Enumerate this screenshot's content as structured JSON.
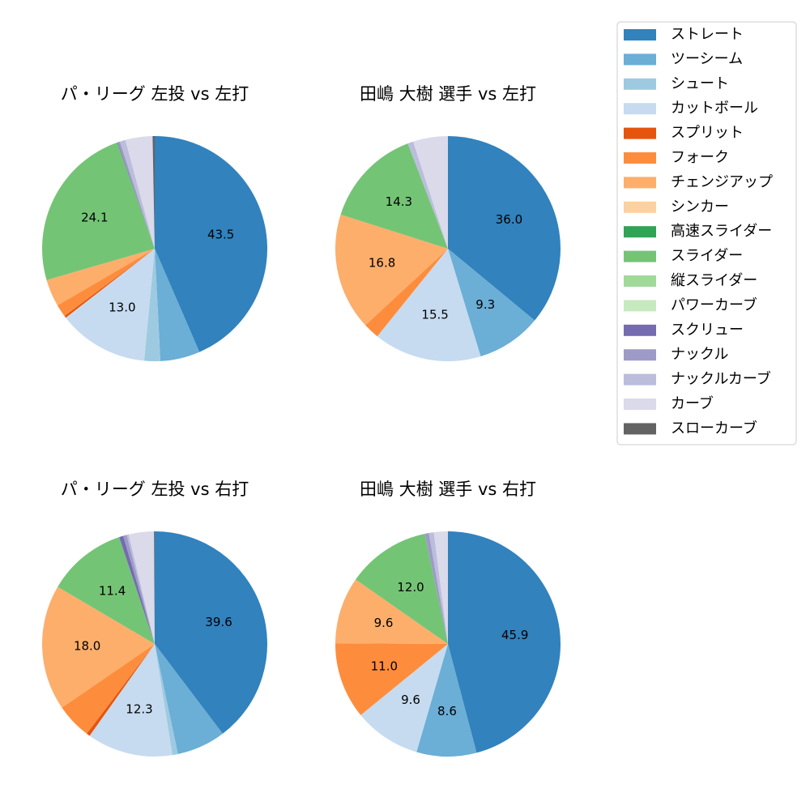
{
  "legend": {
    "labels": [
      "ストレート",
      "ツーシーム",
      "シュート",
      "カットボール",
      "スプリット",
      "フォーク",
      "チェンジアップ",
      "シンカー",
      "高速スライダー",
      "スライダー",
      "縦スライダー",
      "パワーカーブ",
      "スクリュー",
      "ナックル",
      "ナックルカーブ",
      "カーブ",
      "スローカーブ"
    ],
    "colors": [
      "#3182bd",
      "#6baed6",
      "#9ecae1",
      "#c6dbef",
      "#e6550d",
      "#fd8d3c",
      "#fdae6b",
      "#fdd0a2",
      "#31a354",
      "#74c476",
      "#a1d99b",
      "#c7e9c0",
      "#756bb1",
      "#9e9ac8",
      "#bcbddc",
      "#dadaeb",
      "#636363"
    ]
  },
  "chart_data": [
    {
      "type": "pie",
      "title": "パ・リーグ 左投 vs 左打",
      "values": [
        43.5,
        5.7,
        2.3,
        13.0,
        0.3,
        1.8,
        3.9,
        0,
        0,
        24.1,
        0,
        0,
        0.1,
        0.3,
        0.8,
        3.9,
        0.3
      ],
      "value_labels": [
        "43.5",
        null,
        null,
        "13.0",
        null,
        null,
        null,
        null,
        null,
        "24.1",
        null,
        null,
        null,
        null,
        null,
        null,
        null
      ]
    },
    {
      "type": "pie",
      "title": "田嶋 大樹 選手 vs 左打",
      "values": [
        36.0,
        9.3,
        0,
        15.5,
        0,
        2.3,
        16.8,
        0,
        0,
        14.3,
        0,
        0,
        0,
        0,
        0.8,
        5.0,
        0
      ],
      "value_labels": [
        "36.0",
        "9.3",
        null,
        "15.5",
        null,
        null,
        "16.8",
        null,
        null,
        "14.3",
        null,
        null,
        null,
        null,
        null,
        null,
        null
      ]
    },
    {
      "type": "pie",
      "title": "パ・リーグ 左投 vs 右打",
      "values": [
        39.6,
        7.0,
        0.8,
        12.3,
        0.5,
        5.1,
        18.0,
        0,
        0,
        11.4,
        0,
        0,
        0.6,
        0.5,
        0.3,
        3.6,
        0.1
      ],
      "value_labels": [
        "39.6",
        null,
        null,
        "12.3",
        null,
        null,
        "18.0",
        null,
        null,
        "11.4",
        null,
        null,
        null,
        null,
        null,
        null,
        null
      ]
    },
    {
      "type": "pie",
      "title": "田嶋 大樹 選手 vs 右打",
      "values": [
        45.9,
        8.6,
        0,
        9.6,
        0,
        11.0,
        9.6,
        0,
        0,
        12.0,
        0,
        0,
        0,
        0.6,
        0.7,
        2.0,
        0
      ],
      "value_labels": [
        "45.9",
        "8.6",
        null,
        "9.6",
        null,
        "11.0",
        "9.6",
        null,
        null,
        "12.0",
        null,
        null,
        null,
        null,
        null,
        null,
        null
      ]
    }
  ]
}
